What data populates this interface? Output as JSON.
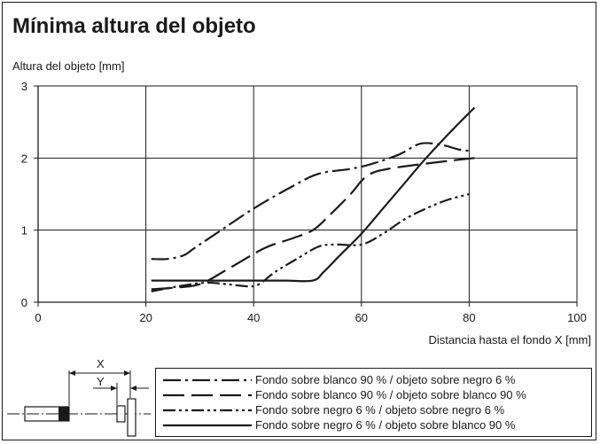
{
  "title": "Mínima altura del objeto",
  "chart_data": {
    "type": "line",
    "ylabel": "Altura del objeto [mm]",
    "xlabel": "Distancia hasta el fondo X [mm]",
    "xlim": [
      0,
      100
    ],
    "ylim": [
      0,
      3
    ],
    "xticks": [
      0,
      20,
      40,
      60,
      80,
      100
    ],
    "yticks": [
      0,
      1,
      2,
      3
    ],
    "grid": true,
    "legend_position": "bottom-right",
    "series": [
      {
        "name": "Fondo sobre blanco 90 % / objeto sobre negro 6 %",
        "style": "dash-dot",
        "points": [
          [
            21,
            0.6
          ],
          [
            24,
            0.6
          ],
          [
            27,
            0.65
          ],
          [
            29,
            0.75
          ],
          [
            33,
            0.95
          ],
          [
            40,
            1.3
          ],
          [
            47,
            1.6
          ],
          [
            52,
            1.78
          ],
          [
            58,
            1.85
          ],
          [
            62,
            1.92
          ],
          [
            67,
            2.05
          ],
          [
            71,
            2.2
          ],
          [
            75,
            2.18
          ],
          [
            78,
            2.12
          ],
          [
            80,
            2.1
          ]
        ]
      },
      {
        "name": "Fondo sobre blanco 90 % / objeto sobre blanco 90 %",
        "style": "long-dash",
        "points": [
          [
            21,
            0.18
          ],
          [
            25,
            0.2
          ],
          [
            30,
            0.25
          ],
          [
            35,
            0.45
          ],
          [
            42,
            0.75
          ],
          [
            47,
            0.88
          ],
          [
            51,
            1.0
          ],
          [
            54,
            1.2
          ],
          [
            58,
            1.5
          ],
          [
            61,
            1.75
          ],
          [
            65,
            1.85
          ],
          [
            75,
            1.95
          ],
          [
            81,
            2.0
          ]
        ]
      },
      {
        "name": "Fondo sobre negro 6 % / objeto sobre negro 6 %",
        "style": "dash-dot-dot",
        "points": [
          [
            21,
            0.15
          ],
          [
            26,
            0.22
          ],
          [
            31,
            0.27
          ],
          [
            35,
            0.25
          ],
          [
            39,
            0.22
          ],
          [
            41,
            0.25
          ],
          [
            44,
            0.42
          ],
          [
            48,
            0.6
          ],
          [
            52,
            0.77
          ],
          [
            55,
            0.8
          ],
          [
            60,
            0.8
          ],
          [
            64,
            0.95
          ],
          [
            68,
            1.15
          ],
          [
            72,
            1.3
          ],
          [
            76,
            1.42
          ],
          [
            80,
            1.5
          ]
        ]
      },
      {
        "name": "Fondo sobre negro 6 % / objeto sobre blanco 90 %",
        "style": "solid",
        "points": [
          [
            21,
            0.3
          ],
          [
            30,
            0.3
          ],
          [
            40,
            0.3
          ],
          [
            46,
            0.3
          ],
          [
            51,
            0.3
          ],
          [
            53,
            0.42
          ],
          [
            56,
            0.65
          ],
          [
            60,
            0.95
          ],
          [
            64,
            1.3
          ],
          [
            68,
            1.65
          ],
          [
            72,
            2.0
          ],
          [
            77,
            2.4
          ],
          [
            81,
            2.7
          ]
        ]
      }
    ]
  },
  "diagram": {
    "label_x": "X",
    "label_y": "Y"
  }
}
